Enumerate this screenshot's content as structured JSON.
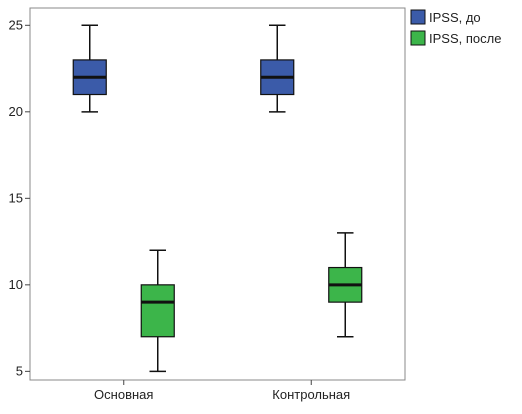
{
  "chart_data": {
    "type": "boxplot",
    "title": "",
    "xlabel": "",
    "ylabel": "",
    "ylim": [
      4.5,
      26
    ],
    "yticks": [
      5,
      10,
      15,
      20,
      25
    ],
    "categories": [
      "Основная",
      "Контрольная"
    ],
    "series": [
      {
        "name": "IPSS, до",
        "color": "#3b5ba9",
        "boxes": [
          {
            "category": "Основная",
            "min": 20,
            "q1": 21,
            "median": 22,
            "q3": 23,
            "max": 25
          },
          {
            "category": "Контрольная",
            "min": 20,
            "q1": 21,
            "median": 22,
            "q3": 23,
            "max": 25
          }
        ]
      },
      {
        "name": "IPSS, после",
        "color": "#3cb54a",
        "boxes": [
          {
            "category": "Основная",
            "min": 5,
            "q1": 7,
            "median": 9,
            "q3": 10,
            "max": 12
          },
          {
            "category": "Контрольная",
            "min": 7,
            "q1": 9,
            "median": 10,
            "q3": 11,
            "max": 13
          }
        ]
      }
    ],
    "legend_position": "top-right",
    "grid": false
  }
}
